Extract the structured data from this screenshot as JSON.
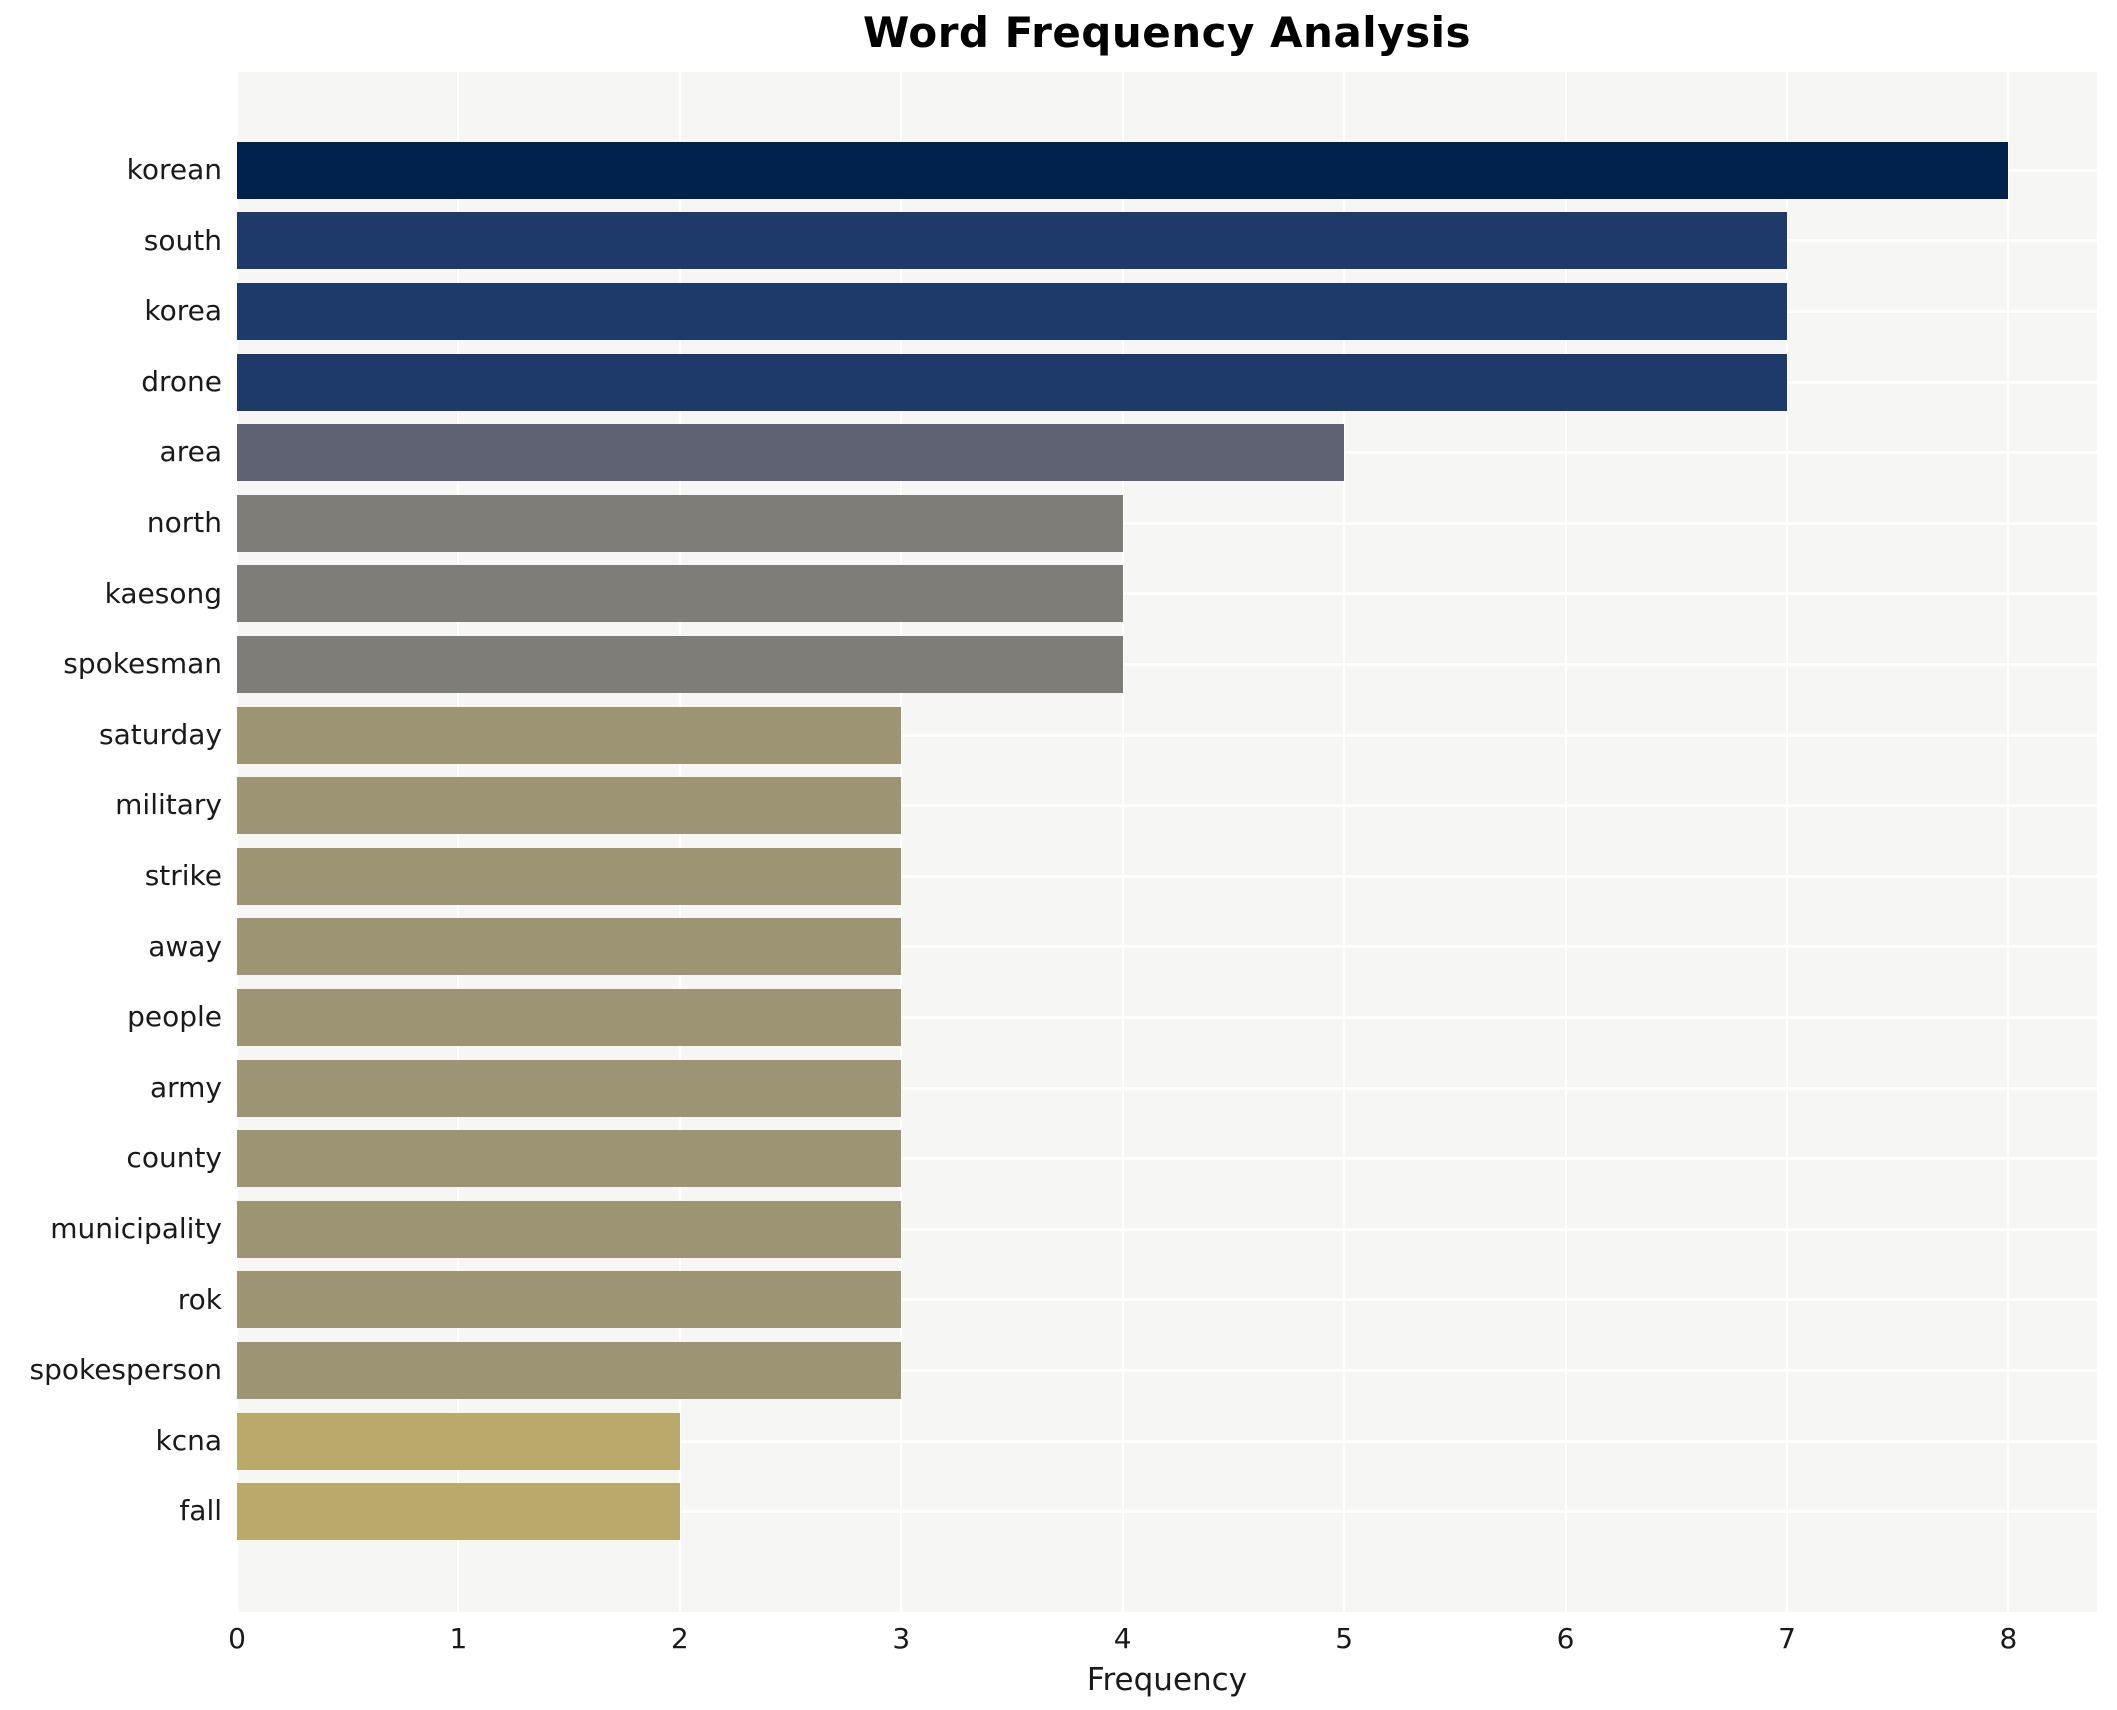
{
  "chart_data": {
    "type": "bar",
    "orientation": "horizontal",
    "title": "Word Frequency Analysis",
    "xlabel": "Frequency",
    "ylabel": "",
    "categories": [
      "korean",
      "south",
      "korea",
      "drone",
      "area",
      "north",
      "kaesong",
      "spokesman",
      "saturday",
      "military",
      "strike",
      "away",
      "people",
      "army",
      "county",
      "municipality",
      "rok",
      "spokesperson",
      "kcna",
      "fall"
    ],
    "values": [
      8,
      7,
      7,
      7,
      5,
      4,
      4,
      4,
      3,
      3,
      3,
      3,
      3,
      3,
      3,
      3,
      3,
      3,
      2,
      2
    ],
    "bar_colors": [
      "#02224e",
      "#1e3a6a",
      "#1e3a6a",
      "#1e3a6a",
      "#5e6272",
      "#7e7d78",
      "#7e7d78",
      "#7e7d78",
      "#9d9473",
      "#9d9473",
      "#9d9473",
      "#9d9473",
      "#9d9473",
      "#9d9473",
      "#9d9473",
      "#9d9473",
      "#9d9473",
      "#9d9473",
      "#b9aa6b",
      "#b9aa6b"
    ],
    "x_ticks": [
      0,
      1,
      2,
      3,
      4,
      5,
      6,
      7,
      8
    ],
    "xlim": [
      0,
      8.4
    ],
    "legend": "none",
    "grid": "both",
    "grid_color": "#ffffff",
    "plot_background": "#f6f6f5",
    "figure_background": "#ffffff",
    "text_color": "#1a1a1a"
  }
}
